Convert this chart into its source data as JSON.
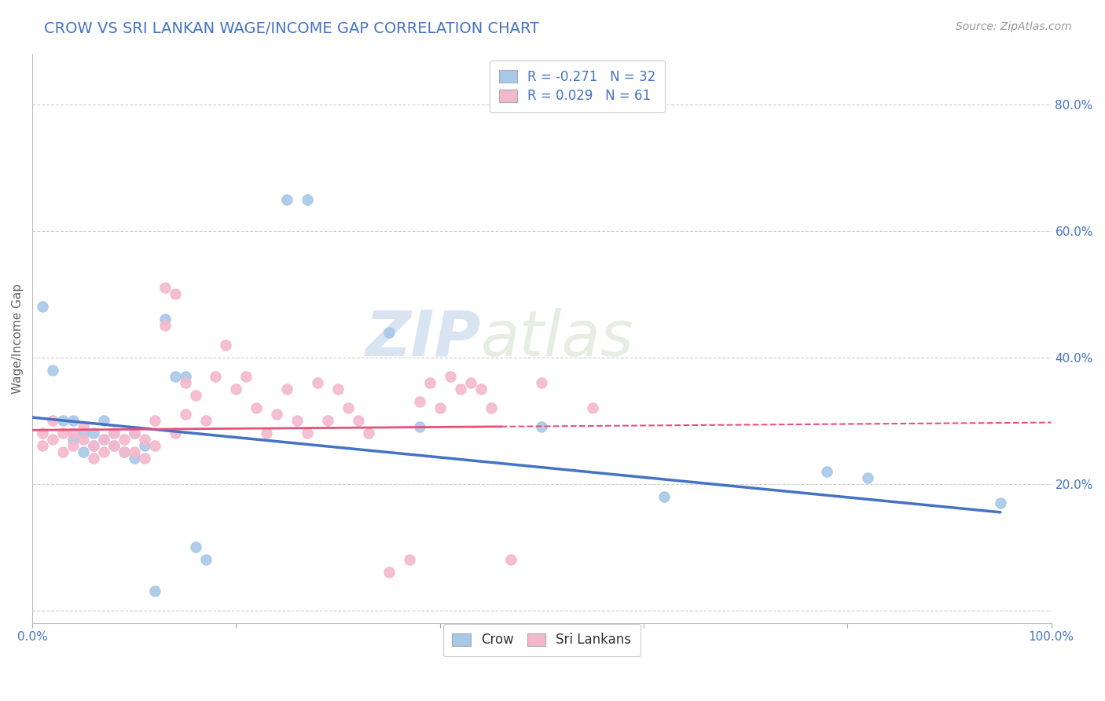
{
  "title": "CROW VS SRI LANKAN WAGE/INCOME GAP CORRELATION CHART",
  "source": "Source: ZipAtlas.com",
  "ylabel": "Wage/Income Gap",
  "legend_crow": "Crow",
  "legend_srilankans": "Sri Lankans",
  "crow_R": -0.271,
  "crow_N": 32,
  "srilankans_R": 0.029,
  "srilankans_N": 61,
  "xlim": [
    0.0,
    1.0
  ],
  "ylim": [
    -0.02,
    0.88
  ],
  "yticks": [
    0.0,
    0.2,
    0.4,
    0.6,
    0.8
  ],
  "yticklabels": [
    "",
    "20.0%",
    "40.0%",
    "60.0%",
    "80.0%"
  ],
  "xticks": [
    0.0,
    0.2,
    0.4,
    0.6,
    0.8,
    1.0
  ],
  "xticklabels": [
    "0.0%",
    "",
    "",
    "",
    "",
    "100.0%"
  ],
  "grid_color": "#d0d0d0",
  "background_color": "#ffffff",
  "crow_color": "#a8c8e8",
  "srilankans_color": "#f4b8cc",
  "crow_line_color": "#4472c4",
  "srilankans_line_color": "#e8507a",
  "title_color": "#4472c4",
  "watermark_zip": "ZIP",
  "watermark_atlas": "atlas",
  "crow_x": [
    0.01,
    0.02,
    0.03,
    0.04,
    0.04,
    0.05,
    0.05,
    0.06,
    0.06,
    0.07,
    0.07,
    0.08,
    0.08,
    0.09,
    0.1,
    0.1,
    0.11,
    0.12,
    0.13,
    0.14,
    0.15,
    0.16,
    0.17,
    0.25,
    0.27,
    0.35,
    0.38,
    0.5,
    0.62,
    0.78,
    0.82,
    0.95
  ],
  "crow_y": [
    0.48,
    0.38,
    0.3,
    0.3,
    0.27,
    0.28,
    0.25,
    0.28,
    0.26,
    0.3,
    0.27,
    0.26,
    0.28,
    0.25,
    0.28,
    0.24,
    0.26,
    0.03,
    0.46,
    0.37,
    0.37,
    0.1,
    0.08,
    0.65,
    0.65,
    0.44,
    0.29,
    0.29,
    0.18,
    0.22,
    0.21,
    0.17
  ],
  "srilankans_x": [
    0.01,
    0.01,
    0.02,
    0.02,
    0.03,
    0.03,
    0.04,
    0.04,
    0.05,
    0.05,
    0.06,
    0.06,
    0.07,
    0.07,
    0.08,
    0.08,
    0.09,
    0.09,
    0.1,
    0.1,
    0.11,
    0.11,
    0.12,
    0.12,
    0.13,
    0.13,
    0.14,
    0.14,
    0.15,
    0.15,
    0.16,
    0.17,
    0.18,
    0.19,
    0.2,
    0.21,
    0.22,
    0.23,
    0.24,
    0.25,
    0.26,
    0.27,
    0.28,
    0.29,
    0.3,
    0.31,
    0.32,
    0.33,
    0.35,
    0.37,
    0.38,
    0.39,
    0.4,
    0.41,
    0.42,
    0.43,
    0.44,
    0.45,
    0.47,
    0.5,
    0.55
  ],
  "srilankans_y": [
    0.28,
    0.26,
    0.3,
    0.27,
    0.28,
    0.25,
    0.26,
    0.28,
    0.27,
    0.29,
    0.26,
    0.24,
    0.27,
    0.25,
    0.28,
    0.26,
    0.27,
    0.25,
    0.25,
    0.28,
    0.24,
    0.27,
    0.26,
    0.3,
    0.45,
    0.51,
    0.5,
    0.28,
    0.31,
    0.36,
    0.34,
    0.3,
    0.37,
    0.42,
    0.35,
    0.37,
    0.32,
    0.28,
    0.31,
    0.35,
    0.3,
    0.28,
    0.36,
    0.3,
    0.35,
    0.32,
    0.3,
    0.28,
    0.06,
    0.08,
    0.33,
    0.36,
    0.32,
    0.37,
    0.35,
    0.36,
    0.35,
    0.32,
    0.08,
    0.36,
    0.32
  ]
}
